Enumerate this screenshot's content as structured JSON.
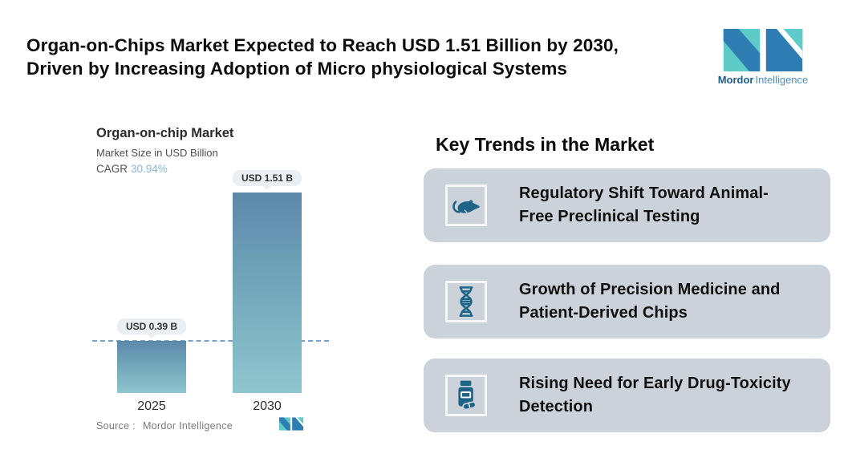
{
  "page": {
    "title_lines": [
      "Organ-on-Chips Market Expected to Reach USD 1.51 Billion by 2030,",
      "Driven by Increasing Adoption of Micro physiological Systems"
    ]
  },
  "brand": {
    "name_bold": "Mordor",
    "name_regular": "Intelligence",
    "logo_icon": "mordor-intelligence-monogram"
  },
  "chart": {
    "title": "Organ-on-chip Market",
    "subtitle": "Market Size in USD Billion",
    "cagr_label": "CAGR",
    "cagr_value": "30.94%",
    "source_label": "Source :",
    "source_value": "Mordor Intelligence"
  },
  "chart_data": {
    "type": "bar",
    "title": "Organ-on-chip Market",
    "ylabel": "Market Size in USD Billion",
    "categories": [
      "2025",
      "2030"
    ],
    "values": [
      0.39,
      1.51
    ],
    "value_labels": [
      "USD 0.39 B",
      "USD 1.51 B"
    ],
    "cagr_pct": 30.94,
    "ylim": [
      0,
      1.51
    ],
    "grid": false,
    "annotations": [
      "dashed horizontal reference line at 2025 value level"
    ],
    "bar_gradient": [
      "#5b89a9",
      "#8ec6ce"
    ]
  },
  "trends": {
    "heading": "Key Trends in the Market",
    "cards": [
      {
        "icon": "rat-icon",
        "text": "Regulatory Shift Toward Animal-Free Preclinical Testing",
        "lines": [
          "Regulatory Shift Toward Animal-",
          "Free Preclinical Testing"
        ]
      },
      {
        "icon": "dna-icon",
        "text": "Growth of Precision Medicine and Patient-Derived Chips",
        "lines": [
          "Growth of Precision Medicine and",
          "Patient-Derived Chips"
        ]
      },
      {
        "icon": "pill-bottle-icon",
        "text": "Rising Need for Early Drug-Toxicity Detection",
        "lines": [
          "Rising Need for Early Drug-Toxicity",
          "Detection"
        ]
      }
    ]
  },
  "colors": {
    "brand_teal": "#5ecbc9",
    "brand_blue": "#2e7eb4",
    "brand_text_dark": "#1b5d8f",
    "brand_text_light": "#4a90c4",
    "bar_top": "#5b89a9",
    "bar_bottom": "#8ec6ce",
    "dashed_line": "#7aa2c8",
    "cagr_value": "#8cb6d6",
    "card_bg": "#ccd2da",
    "icon_blue": "#1d6486",
    "pill_bg": "#e9eff2"
  }
}
